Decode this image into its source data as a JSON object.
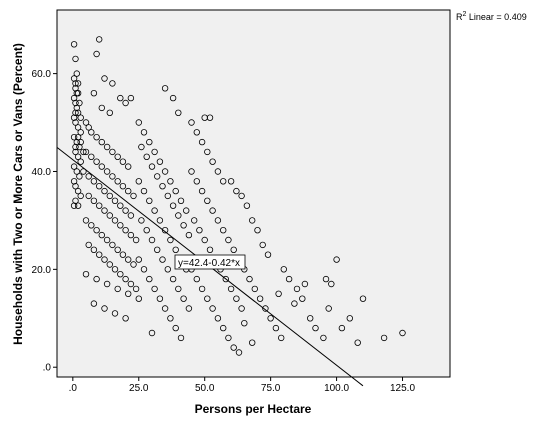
{
  "chart_data": {
    "type": "scatter",
    "xlabel": "Persons per Hectare",
    "ylabel": "Households with Two or More Cars or Vans (Percent)",
    "xlim": [
      -6,
      143
    ],
    "ylim": [
      -2,
      73
    ],
    "xticks": [
      0,
      25,
      50,
      75,
      100,
      125
    ],
    "yticks": [
      0,
      20,
      40,
      60
    ],
    "xtick_labels": [
      ".0",
      "25.0",
      "50.0",
      "75.0",
      "100.0",
      "125.0"
    ],
    "ytick_labels": [
      ".0",
      "20.0",
      "40.0",
      "60.0"
    ],
    "r2_label": "R2 Linear = 0.409",
    "r2_prefix": "R",
    "r2_sup": "2",
    "r2_suffix": " Linear = 0.409",
    "fit_label": "y=42.4-0.42*x",
    "fit": {
      "intercept": 42.4,
      "slope": -0.42,
      "x_end": 110
    },
    "marker": "open-circle",
    "grid": false,
    "plot_background": "#f0f0f0",
    "points": [
      [
        0.5,
        66
      ],
      [
        1,
        63
      ],
      [
        1.5,
        60
      ],
      [
        0.5,
        59
      ],
      [
        1,
        57
      ],
      [
        2,
        56
      ],
      [
        0.5,
        55
      ],
      [
        1,
        54
      ],
      [
        1.5,
        53
      ],
      [
        2,
        52
      ],
      [
        0.5,
        51
      ],
      [
        1,
        50
      ],
      [
        2,
        49
      ],
      [
        3,
        48
      ],
      [
        0.5,
        47
      ],
      [
        1.5,
        46
      ],
      [
        2.5,
        45
      ],
      [
        1,
        44
      ],
      [
        2,
        43
      ],
      [
        3,
        42
      ],
      [
        0.5,
        41
      ],
      [
        1.5,
        40
      ],
      [
        2.5,
        39
      ],
      [
        0.5,
        38
      ],
      [
        1,
        37
      ],
      [
        2,
        36
      ],
      [
        3,
        35
      ],
      [
        1,
        34
      ],
      [
        2,
        33
      ],
      [
        0.5,
        33
      ],
      [
        1,
        58
      ],
      [
        2,
        58
      ],
      [
        1.5,
        56
      ],
      [
        2.5,
        54
      ],
      [
        1,
        52
      ],
      [
        3,
        51
      ],
      [
        2,
        47
      ],
      [
        1,
        45
      ],
      [
        4,
        44
      ],
      [
        3,
        46
      ],
      [
        10,
        67
      ],
      [
        9,
        64
      ],
      [
        12,
        59
      ],
      [
        15,
        58
      ],
      [
        18,
        55
      ],
      [
        20,
        54
      ],
      [
        22,
        55
      ],
      [
        8,
        56
      ],
      [
        11,
        53
      ],
      [
        14,
        52
      ],
      [
        5,
        50
      ],
      [
        6,
        49
      ],
      [
        7,
        48
      ],
      [
        9,
        47
      ],
      [
        11,
        46
      ],
      [
        13,
        45
      ],
      [
        15,
        44
      ],
      [
        17,
        43
      ],
      [
        19,
        42
      ],
      [
        21,
        41
      ],
      [
        5,
        44
      ],
      [
        7,
        43
      ],
      [
        9,
        42
      ],
      [
        11,
        41
      ],
      [
        13,
        40
      ],
      [
        15,
        39
      ],
      [
        17,
        38
      ],
      [
        19,
        37
      ],
      [
        21,
        36
      ],
      [
        23,
        35
      ],
      [
        4,
        40
      ],
      [
        6,
        39
      ],
      [
        8,
        38
      ],
      [
        10,
        37
      ],
      [
        12,
        36
      ],
      [
        14,
        35
      ],
      [
        16,
        34
      ],
      [
        18,
        33
      ],
      [
        20,
        32
      ],
      [
        22,
        31
      ],
      [
        6,
        35
      ],
      [
        8,
        34
      ],
      [
        10,
        33
      ],
      [
        12,
        32
      ],
      [
        14,
        31
      ],
      [
        16,
        30
      ],
      [
        18,
        29
      ],
      [
        20,
        28
      ],
      [
        22,
        27
      ],
      [
        24,
        26
      ],
      [
        5,
        30
      ],
      [
        7,
        29
      ],
      [
        9,
        28
      ],
      [
        11,
        27
      ],
      [
        13,
        26
      ],
      [
        15,
        25
      ],
      [
        17,
        24
      ],
      [
        19,
        23
      ],
      [
        21,
        22
      ],
      [
        23,
        21
      ],
      [
        6,
        25
      ],
      [
        8,
        24
      ],
      [
        10,
        23
      ],
      [
        12,
        22
      ],
      [
        14,
        21
      ],
      [
        16,
        20
      ],
      [
        18,
        19
      ],
      [
        20,
        18
      ],
      [
        22,
        17
      ],
      [
        24,
        16
      ],
      [
        5,
        19
      ],
      [
        9,
        18
      ],
      [
        13,
        17
      ],
      [
        17,
        16
      ],
      [
        21,
        15
      ],
      [
        25,
        14
      ],
      [
        8,
        13
      ],
      [
        12,
        12
      ],
      [
        16,
        11
      ],
      [
        20,
        10
      ],
      [
        25,
        50
      ],
      [
        27,
        48
      ],
      [
        29,
        46
      ],
      [
        31,
        44
      ],
      [
        33,
        42
      ],
      [
        35,
        40
      ],
      [
        37,
        38
      ],
      [
        39,
        36
      ],
      [
        41,
        34
      ],
      [
        43,
        32
      ],
      [
        26,
        45
      ],
      [
        28,
        43
      ],
      [
        30,
        41
      ],
      [
        32,
        39
      ],
      [
        34,
        37
      ],
      [
        36,
        35
      ],
      [
        38,
        33
      ],
      [
        40,
        31
      ],
      [
        42,
        29
      ],
      [
        44,
        27
      ],
      [
        25,
        38
      ],
      [
        27,
        36
      ],
      [
        29,
        34
      ],
      [
        31,
        32
      ],
      [
        33,
        30
      ],
      [
        35,
        28
      ],
      [
        37,
        26
      ],
      [
        39,
        24
      ],
      [
        41,
        22
      ],
      [
        43,
        20
      ],
      [
        26,
        30
      ],
      [
        28,
        28
      ],
      [
        30,
        26
      ],
      [
        32,
        24
      ],
      [
        34,
        22
      ],
      [
        36,
        20
      ],
      [
        38,
        18
      ],
      [
        40,
        16
      ],
      [
        42,
        14
      ],
      [
        44,
        12
      ],
      [
        25,
        22
      ],
      [
        27,
        20
      ],
      [
        29,
        18
      ],
      [
        31,
        16
      ],
      [
        33,
        14
      ],
      [
        35,
        12
      ],
      [
        37,
        10
      ],
      [
        39,
        8
      ],
      [
        41,
        6
      ],
      [
        30,
        7
      ],
      [
        35,
        57
      ],
      [
        38,
        55
      ],
      [
        40,
        52
      ],
      [
        45,
        50
      ],
      [
        47,
        48
      ],
      [
        49,
        46
      ],
      [
        51,
        44
      ],
      [
        53,
        42
      ],
      [
        55,
        40
      ],
      [
        57,
        38
      ],
      [
        45,
        40
      ],
      [
        47,
        38
      ],
      [
        49,
        36
      ],
      [
        51,
        34
      ],
      [
        53,
        32
      ],
      [
        55,
        30
      ],
      [
        57,
        28
      ],
      [
        59,
        26
      ],
      [
        61,
        24
      ],
      [
        63,
        22
      ],
      [
        46,
        30
      ],
      [
        48,
        28
      ],
      [
        50,
        26
      ],
      [
        52,
        24
      ],
      [
        54,
        22
      ],
      [
        56,
        20
      ],
      [
        58,
        18
      ],
      [
        60,
        16
      ],
      [
        62,
        14
      ],
      [
        64,
        12
      ],
      [
        45,
        20
      ],
      [
        47,
        18
      ],
      [
        49,
        16
      ],
      [
        51,
        14
      ],
      [
        53,
        12
      ],
      [
        55,
        10
      ],
      [
        57,
        8
      ],
      [
        59,
        6
      ],
      [
        61,
        4
      ],
      [
        63,
        3
      ],
      [
        50,
        51
      ],
      [
        52,
        51
      ],
      [
        60,
        38
      ],
      [
        62,
        36
      ],
      [
        64,
        35
      ],
      [
        66,
        33
      ],
      [
        68,
        30
      ],
      [
        70,
        28
      ],
      [
        72,
        25
      ],
      [
        74,
        23
      ],
      [
        65,
        20
      ],
      [
        67,
        18
      ],
      [
        69,
        16
      ],
      [
        71,
        14
      ],
      [
        73,
        12
      ],
      [
        75,
        10
      ],
      [
        77,
        8
      ],
      [
        79,
        6
      ],
      [
        65,
        9
      ],
      [
        68,
        5
      ],
      [
        80,
        20
      ],
      [
        82,
        18
      ],
      [
        85,
        16
      ],
      [
        87,
        14
      ],
      [
        90,
        10
      ],
      [
        92,
        8
      ],
      [
        95,
        6
      ],
      [
        97,
        12
      ],
      [
        100,
        22
      ],
      [
        98,
        17
      ],
      [
        105,
        10
      ],
      [
        108,
        5
      ],
      [
        110,
        14
      ],
      [
        118,
        6
      ],
      [
        125,
        7
      ],
      [
        102,
        8
      ],
      [
        96,
        18
      ],
      [
        88,
        17
      ],
      [
        84,
        13
      ],
      [
        78,
        15
      ]
    ]
  }
}
